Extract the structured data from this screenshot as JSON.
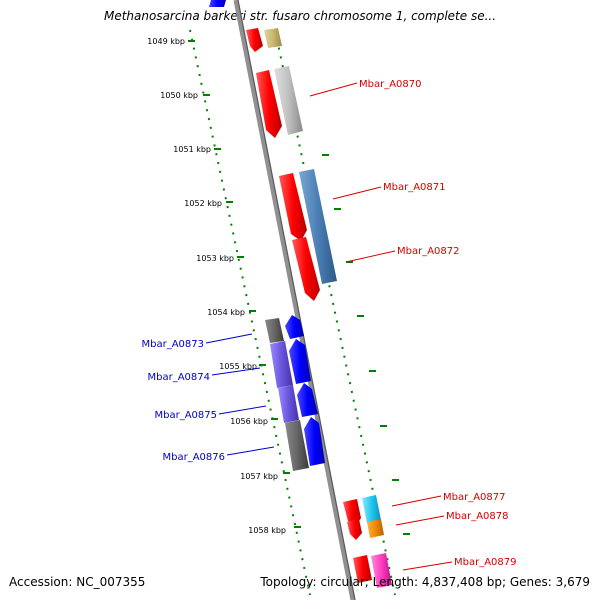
{
  "title": "Methanosarcina barkeri str. fusaro chromosome 1, complete se...",
  "footer": {
    "accession": "Accession: NC_007355",
    "topology": "Topology: circular; Length: 4,837,408 bp; Genes: 3,679"
  },
  "ticks": [
    "1049 kbp",
    "1050 kbp",
    "1051 kbp",
    "1052 kbp",
    "1053 kbp",
    "1054 kbp",
    "1055 kbp",
    "1056 kbp",
    "1057 kbp",
    "1058 kbp"
  ],
  "genes_forward": [
    "Mbar_A0870",
    "Mbar_A0871",
    "Mbar_A0872",
    "Mbar_A0877",
    "Mbar_A0878",
    "Mbar_A0879"
  ],
  "genes_reverse": [
    "Mbar_A0873",
    "Mbar_A0874",
    "Mbar_A0875",
    "Mbar_A0876"
  ],
  "colors": {
    "forward_label": "#d40000",
    "reverse_label": "#0000c8",
    "axis": "#909090",
    "tick": "#008000"
  }
}
